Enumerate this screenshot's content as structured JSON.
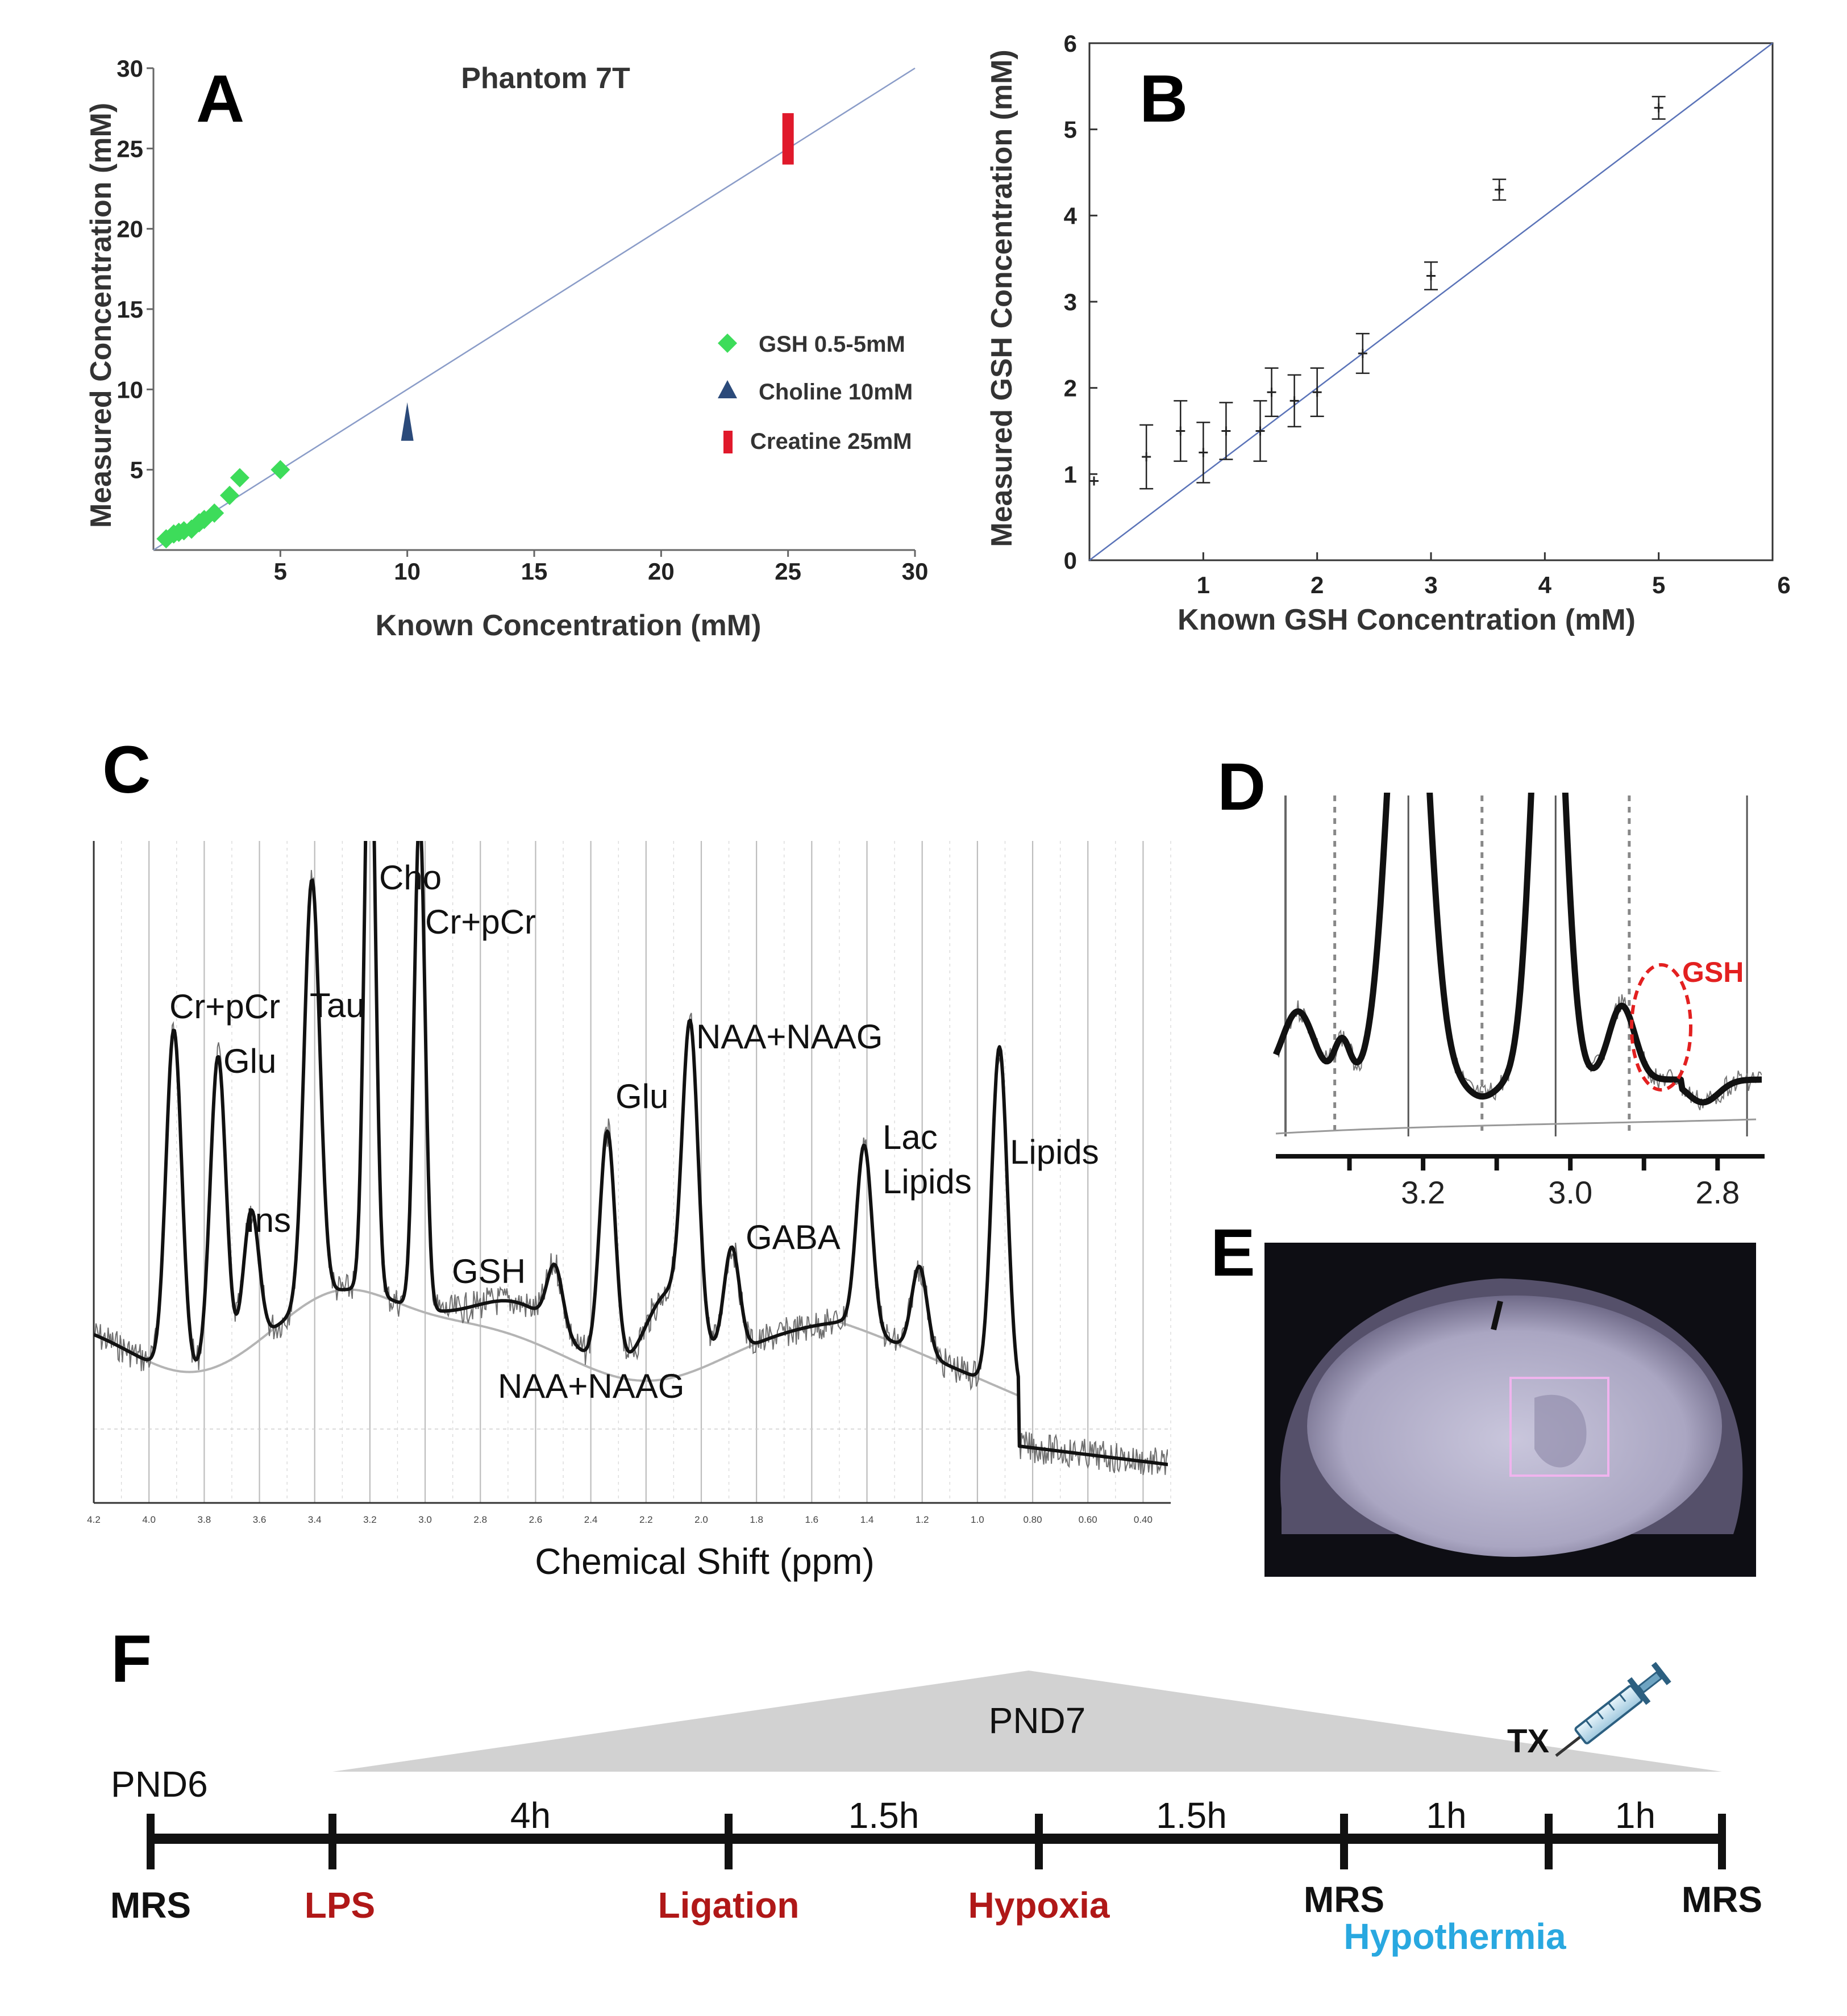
{
  "chart_data": [
    {
      "panel": "A",
      "type": "scatter",
      "title": "Phantom 7T",
      "xlabel": "Known Concentration (mM)",
      "ylabel": "Measured Concentration (mM)",
      "xlim": [
        0,
        30
      ],
      "ylim": [
        0,
        30
      ],
      "xticks": [
        5,
        10,
        15,
        20,
        25,
        30
      ],
      "yticks": [
        5,
        10,
        15,
        20,
        25,
        30
      ],
      "identity_line": [
        [
          0,
          0
        ],
        [
          30,
          30
        ]
      ],
      "series": [
        {
          "name": "GSH 0.5-5mM",
          "marker": "diamond",
          "color": "#3ddc5a",
          "x": [
            0.5,
            0.8,
            1.0,
            1.2,
            1.5,
            1.8,
            2.0,
            2.4,
            3.0,
            3.4,
            5.0
          ],
          "y": [
            0.7,
            1.0,
            1.1,
            1.2,
            1.3,
            1.7,
            1.9,
            2.3,
            3.4,
            4.5,
            5.0
          ]
        },
        {
          "name": "Choline 10mM",
          "marker": "triangle",
          "color": "#2b4a7a",
          "x": [
            10
          ],
          "y": [
            7.6
          ],
          "yrange": [
            [
              6.8,
              9.2
            ]
          ]
        },
        {
          "name": "Creatine 25mM",
          "marker": "bar",
          "color": "#e0192b",
          "x": [
            25
          ],
          "y": [
            25.6
          ],
          "yrange": [
            [
              24.0,
              27.2
            ]
          ]
        }
      ],
      "legend": "right"
    },
    {
      "panel": "B",
      "type": "scatter",
      "xlabel": "Known GSH Concentration (mM)",
      "ylabel": "Measured GSH Concentration (mM)",
      "xlim": [
        0,
        6
      ],
      "ylim": [
        0,
        6
      ],
      "xticks": [
        1,
        2,
        3,
        4,
        5,
        6
      ],
      "yticks": [
        0,
        1,
        2,
        3,
        4,
        5,
        6
      ],
      "identity_line": [
        [
          0,
          0
        ],
        [
          6,
          6
        ]
      ],
      "series": [
        {
          "name": "GSH",
          "x": [
            0.0,
            0.5,
            0.8,
            1.0,
            1.2,
            1.5,
            1.6,
            1.8,
            2.0,
            2.4,
            3.0,
            3.6,
            5.0
          ],
          "y": [
            0.92,
            1.2,
            1.5,
            1.25,
            1.5,
            1.5,
            1.95,
            1.85,
            1.95,
            2.4,
            3.3,
            4.3,
            5.25
          ],
          "err": [
            0,
            0.37,
            0.35,
            0.35,
            0.33,
            0.35,
            0.28,
            0.3,
            0.28,
            0.23,
            0.16,
            0.12,
            0.13
          ]
        }
      ]
    },
    {
      "panel": "C",
      "type": "line",
      "xlabel": "Chemical Shift (ppm)",
      "x_reversed": true,
      "xticks": [
        "4.2",
        "4.0",
        "3.8",
        "3.6",
        "3.4",
        "3.2",
        "3.0",
        "2.8",
        "2.6",
        "2.4",
        "2.2",
        "2.0",
        "1.8",
        "1.6",
        "1.4",
        "1.2",
        "1.0",
        "0.80",
        "0.60",
        "0.40"
      ],
      "series": [
        {
          "name": "fit",
          "peaks": [
            {
              "ppm": 3.91,
              "height": 0.55,
              "label": "Cr+pCr"
            },
            {
              "ppm": 3.75,
              "height": 0.5,
              "label": "Glu"
            },
            {
              "ppm": 3.63,
              "height": 0.22,
              "label": "Ins"
            },
            {
              "ppm": 3.41,
              "height": 0.68,
              "label": "Tau"
            },
            {
              "ppm": 3.2,
              "height": 1.0,
              "label": "Cho"
            },
            {
              "ppm": 3.02,
              "height": 0.8,
              "label": "Cr+pCr"
            },
            {
              "ppm": 2.53,
              "height": 0.1,
              "label": "GSH"
            },
            {
              "ppm": 2.34,
              "height": 0.38,
              "label": "Glu"
            },
            {
              "ppm": 2.04,
              "height": 0.48,
              "label": "NAA+NAAG"
            },
            {
              "ppm": 1.89,
              "height": 0.17,
              "label": "GABA"
            },
            {
              "ppm": 1.41,
              "height": 0.3,
              "label": "Lac Lipids"
            },
            {
              "ppm": 1.21,
              "height": 0.14,
              "label": ""
            },
            {
              "ppm": 0.92,
              "height": 0.55,
              "label": "Lipids"
            }
          ]
        },
        {
          "name": "baseline",
          "label": "NAA+NAAG"
        }
      ]
    },
    {
      "panel": "D",
      "type": "line",
      "xticks": [
        "3.2",
        "3.0",
        "2.8"
      ],
      "x_reversed": true,
      "annotation": "GSH"
    }
  ],
  "panels": {
    "a_letter": "A",
    "b_letter": "B",
    "c_letter": "C",
    "d_letter": "D",
    "e_letter": "E",
    "f_letter": "F"
  },
  "panel_c": {
    "labels": {
      "crpcr1": "Cr+pCr",
      "glu1": "Glu",
      "ins": "Ins",
      "tau": "Tau",
      "cho": "Cho",
      "crpcr2": "Cr+pCr",
      "gsh": "GSH",
      "glu2": "Glu",
      "naa1": "NAA+NAAG",
      "naa2": "NAA+NAAG",
      "gaba": "GABA",
      "lac": "Lac",
      "lipids_lac": "Lipids",
      "lipids": "Lipids"
    }
  },
  "panel_d": {
    "annotation": "GSH"
  },
  "timeline": {
    "day1": "PND6",
    "day2": "PND7",
    "treatment": "TX",
    "colors": {
      "event_red": "#b01818",
      "event_blue": "#29a8e0",
      "event_black": "#111111"
    },
    "events": [
      {
        "label": "MRS",
        "color": "black"
      },
      {
        "label": "LPS",
        "color": "red"
      },
      {
        "label": "Ligation",
        "color": "red"
      },
      {
        "label": "Hypoxia",
        "color": "red"
      },
      {
        "label": "MRS",
        "color": "black"
      },
      {
        "label": "Hypothermia",
        "color": "blue"
      },
      {
        "label": "MRS",
        "color": "black"
      }
    ],
    "durations": [
      "4h",
      "1.5h",
      "1.5h",
      "1h",
      "1h"
    ]
  }
}
